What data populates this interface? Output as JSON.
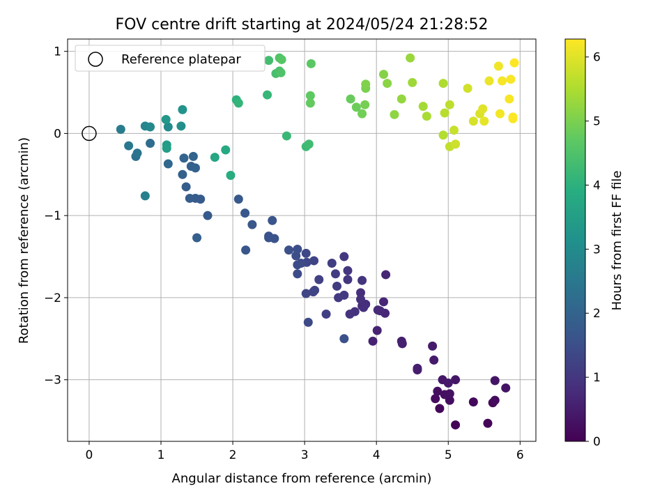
{
  "chart_data": {
    "type": "scatter",
    "title": "FOV centre drift starting at 2024/05/24 21:28:52",
    "xlabel": "Angular distance from reference (arcmin)",
    "ylabel": "Rotation from reference (arcmin)",
    "xlim": [
      -0.3,
      6.22
    ],
    "ylim": [
      -3.75,
      1.15
    ],
    "xticks": [
      0,
      1,
      2,
      3,
      4,
      5,
      6
    ],
    "yticks": [
      -3,
      -2,
      -1,
      0,
      1
    ],
    "xtick_labels": [
      "0",
      "1",
      "2",
      "3",
      "4",
      "5",
      "6"
    ],
    "ytick_labels": [
      "−3",
      "−2",
      "−1",
      "0",
      "1"
    ],
    "grid": true,
    "legend": {
      "position": "top-left",
      "entries": [
        "Reference platepar"
      ]
    },
    "colorbar": {
      "label": "Hours from first FF file",
      "range": [
        0,
        6.28
      ],
      "ticks": [
        0,
        1,
        2,
        3,
        4,
        5,
        6
      ],
      "tick_labels": [
        "0",
        "1",
        "2",
        "3",
        "4",
        "5",
        "6"
      ],
      "colormap": "viridis"
    },
    "reference_point": {
      "x": 0,
      "y": 0
    },
    "points": [
      [
        5.1,
        -3.55,
        0.05
      ],
      [
        5.55,
        -3.53,
        0.08
      ],
      [
        4.88,
        -3.35,
        0.1
      ],
      [
        5.35,
        -3.27,
        0.12
      ],
      [
        5.62,
        -3.28,
        0.15
      ],
      [
        5.65,
        -3.25,
        0.17
      ],
      [
        4.82,
        -3.23,
        0.2
      ],
      [
        5.02,
        -3.25,
        0.22
      ],
      [
        4.85,
        -3.14,
        0.25
      ],
      [
        4.95,
        -3.18,
        0.27
      ],
      [
        5.02,
        -3.17,
        0.3
      ],
      [
        5.8,
        -3.1,
        0.32
      ],
      [
        5.65,
        -3.01,
        0.35
      ],
      [
        5.1,
        -3.0,
        0.38
      ],
      [
        4.92,
        -3.0,
        0.4
      ],
      [
        5.0,
        -3.04,
        0.42
      ],
      [
        4.8,
        -2.76,
        0.45
      ],
      [
        4.78,
        -2.59,
        0.47
      ],
      [
        4.57,
        -2.88,
        0.5
      ],
      [
        4.57,
        -2.86,
        0.52
      ],
      [
        4.35,
        -2.53,
        0.55
      ],
      [
        4.36,
        -2.56,
        0.57
      ],
      [
        3.95,
        -2.53,
        0.6
      ],
      [
        4.01,
        -2.4,
        0.62
      ],
      [
        4.13,
        -1.72,
        0.65
      ],
      [
        4.1,
        -2.05,
        0.67
      ],
      [
        4.12,
        -2.19,
        0.7
      ],
      [
        4.02,
        -2.15,
        0.72
      ],
      [
        4.05,
        -2.16,
        0.75
      ],
      [
        3.8,
        -2.1,
        0.77
      ],
      [
        3.85,
        -2.08,
        0.8
      ],
      [
        3.82,
        -2.12,
        0.82
      ],
      [
        3.78,
        -1.94,
        0.85
      ],
      [
        3.78,
        -2.02,
        0.87
      ],
      [
        3.7,
        -2.17,
        0.9
      ],
      [
        3.63,
        -2.2,
        0.92
      ],
      [
        3.8,
        -1.79,
        0.95
      ],
      [
        3.6,
        -1.67,
        0.97
      ],
      [
        3.6,
        -1.78,
        1.0
      ],
      [
        3.55,
        -1.5,
        1.02
      ],
      [
        3.55,
        -1.97,
        1.05
      ],
      [
        3.47,
        -2.0,
        1.07
      ],
      [
        3.45,
        -1.86,
        1.1
      ],
      [
        3.43,
        -1.71,
        1.12
      ],
      [
        3.38,
        -1.58,
        1.15
      ],
      [
        3.3,
        -2.2,
        1.17
      ],
      [
        3.2,
        -1.78,
        1.2
      ],
      [
        3.14,
        -1.91,
        1.22
      ],
      [
        3.12,
        -1.93,
        1.25
      ],
      [
        3.13,
        -1.55,
        1.27
      ],
      [
        3.02,
        -1.95,
        1.3
      ],
      [
        3.03,
        -1.57,
        1.32
      ],
      [
        3.02,
        -1.46,
        1.35
      ],
      [
        3.05,
        -2.3,
        1.37
      ],
      [
        2.95,
        -1.58,
        1.4
      ],
      [
        2.9,
        -1.6,
        1.42
      ],
      [
        2.9,
        -1.71,
        1.45
      ],
      [
        2.88,
        -1.49,
        1.47
      ],
      [
        2.9,
        -1.41,
        1.5
      ],
      [
        2.78,
        -1.42,
        1.52
      ],
      [
        3.55,
        -2.5,
        1.55
      ],
      [
        2.5,
        -1.25,
        1.57
      ],
      [
        2.5,
        -1.27,
        1.6
      ],
      [
        2.58,
        -1.28,
        1.62
      ],
      [
        2.55,
        -1.06,
        1.65
      ],
      [
        2.18,
        -1.42,
        1.67
      ],
      [
        2.27,
        -1.11,
        1.7
      ],
      [
        2.17,
        -0.97,
        1.72
      ],
      [
        2.08,
        -0.8,
        1.75
      ],
      [
        1.65,
        -1.0,
        1.77
      ],
      [
        1.55,
        -0.8,
        1.8
      ],
      [
        1.48,
        -0.79,
        1.82
      ],
      [
        1.4,
        -0.79,
        1.85
      ],
      [
        1.35,
        -0.65,
        1.87
      ],
      [
        1.5,
        -1.27,
        1.9
      ],
      [
        1.3,
        -0.5,
        1.92
      ],
      [
        1.42,
        -0.4,
        1.95
      ],
      [
        1.48,
        -0.42,
        1.97
      ],
      [
        1.32,
        -0.3,
        2.0
      ],
      [
        1.45,
        -0.28,
        2.02
      ],
      [
        1.1,
        -0.37,
        2.1
      ],
      [
        0.85,
        -0.12,
        2.2
      ],
      [
        0.65,
        -0.28,
        2.3
      ],
      [
        0.67,
        -0.24,
        2.4
      ],
      [
        0.55,
        -0.15,
        2.5
      ],
      [
        0.44,
        0.05,
        2.6
      ],
      [
        0.78,
        -0.76,
        2.7
      ],
      [
        0.78,
        0.09,
        2.8
      ],
      [
        0.85,
        0.08,
        2.9
      ],
      [
        1.1,
        0.08,
        3.0
      ],
      [
        1.28,
        0.09,
        3.1
      ],
      [
        1.3,
        0.29,
        3.2
      ],
      [
        1.07,
        0.17,
        3.3
      ],
      [
        1.08,
        -0.14,
        3.4
      ],
      [
        1.08,
        -0.18,
        3.5
      ],
      [
        1.75,
        -0.29,
        3.7
      ],
      [
        1.9,
        -0.2,
        3.8
      ],
      [
        1.97,
        -0.51,
        3.9
      ],
      [
        2.05,
        0.41,
        4.0
      ],
      [
        2.08,
        0.37,
        4.1
      ],
      [
        2.48,
        0.47,
        4.15
      ],
      [
        2.75,
        -0.03,
        4.2
      ],
      [
        3.02,
        -0.16,
        4.25
      ],
      [
        3.06,
        -0.13,
        4.3
      ],
      [
        2.5,
        0.89,
        4.35
      ],
      [
        2.6,
        0.73,
        4.4
      ],
      [
        2.65,
        0.76,
        4.45
      ],
      [
        2.67,
        0.74,
        4.5
      ],
      [
        2.65,
        0.92,
        4.55
      ],
      [
        2.68,
        0.9,
        4.6
      ],
      [
        3.09,
        0.85,
        4.65
      ],
      [
        3.08,
        0.46,
        4.7
      ],
      [
        3.08,
        0.37,
        4.75
      ],
      [
        3.64,
        0.42,
        4.8
      ],
      [
        3.72,
        0.32,
        4.85
      ],
      [
        3.8,
        0.24,
        4.9
      ],
      [
        3.84,
        0.35,
        4.95
      ],
      [
        3.85,
        0.55,
        5.0
      ],
      [
        3.85,
        0.6,
        5.05
      ],
      [
        4.1,
        0.72,
        5.1
      ],
      [
        4.15,
        0.61,
        5.15
      ],
      [
        4.25,
        0.23,
        5.2
      ],
      [
        4.35,
        0.42,
        5.25
      ],
      [
        4.47,
        0.92,
        5.3
      ],
      [
        4.5,
        0.62,
        5.35
      ],
      [
        4.65,
        0.33,
        5.4
      ],
      [
        4.7,
        0.21,
        5.45
      ],
      [
        4.93,
        0.61,
        5.5
      ],
      [
        4.93,
        -0.02,
        5.55
      ],
      [
        4.95,
        0.25,
        5.6
      ],
      [
        5.02,
        0.35,
        5.65
      ],
      [
        5.02,
        -0.16,
        5.7
      ],
      [
        5.08,
        0.04,
        5.75
      ],
      [
        5.1,
        -0.13,
        5.8
      ],
      [
        5.27,
        0.55,
        5.85
      ],
      [
        5.35,
        0.15,
        5.9
      ],
      [
        5.44,
        0.24,
        5.95
      ],
      [
        5.48,
        0.3,
        6.0
      ],
      [
        5.5,
        0.15,
        6.05
      ],
      [
        5.57,
        0.64,
        6.1
      ],
      [
        5.7,
        0.82,
        6.15
      ],
      [
        5.72,
        0.24,
        6.18
      ],
      [
        5.75,
        0.64,
        6.2
      ],
      [
        5.85,
        0.42,
        6.22
      ],
      [
        5.87,
        0.66,
        6.24
      ],
      [
        5.9,
        0.18,
        6.25
      ],
      [
        5.9,
        0.2,
        6.26
      ],
      [
        5.92,
        0.86,
        6.28
      ]
    ]
  }
}
